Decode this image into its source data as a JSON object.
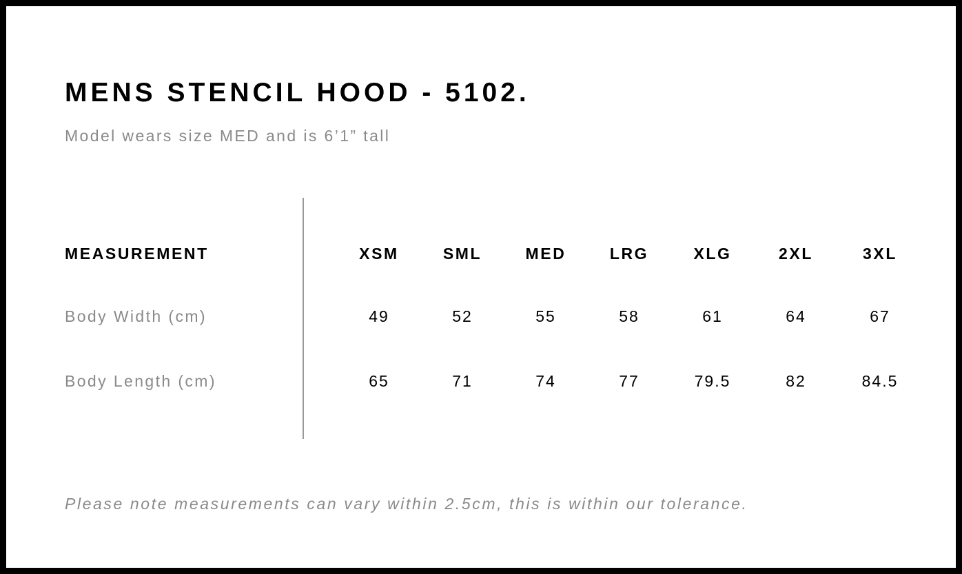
{
  "title": "MENS STENCIL HOOD - 5102.",
  "subtitle": "Model wears size MED and is 6’1” tall",
  "table": {
    "header_label": "MEASUREMENT",
    "sizes": [
      "XSM",
      "SML",
      "MED",
      "LRG",
      "XLG",
      "2XL",
      "3XL"
    ],
    "rows": [
      {
        "label": "Body Width (cm)",
        "values": [
          "49",
          "52",
          "55",
          "58",
          "61",
          "64",
          "67"
        ]
      },
      {
        "label": "Body Length (cm)",
        "values": [
          "65",
          "71",
          "74",
          "77",
          "79.5",
          "82",
          "84.5"
        ]
      }
    ]
  },
  "note": "Please note measurements can vary within 2.5cm, this is within our tolerance."
}
